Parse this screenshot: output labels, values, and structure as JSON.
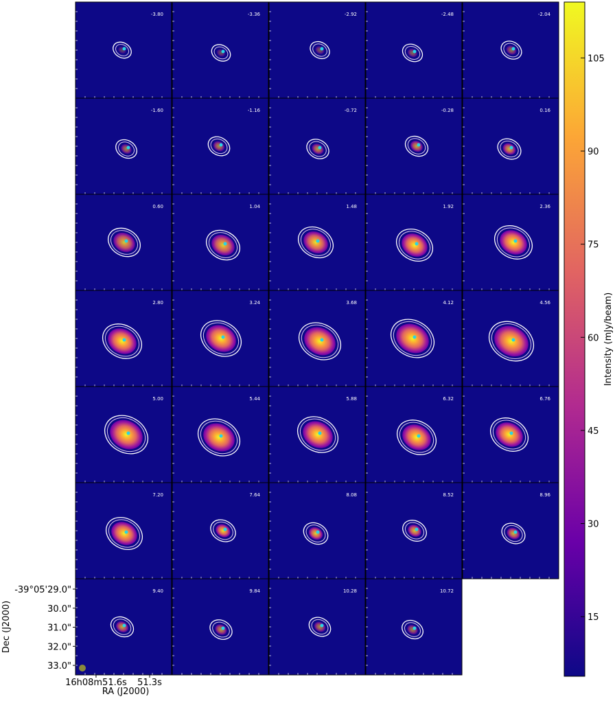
{
  "chart_data": {
    "type": "channel-map",
    "panels": [
      "-3.80",
      "-3.36",
      "-2.92",
      "-2.48",
      "-2.04",
      "-1.60",
      "-1.16",
      "-0.72",
      "-0.28",
      "0.16",
      "0.60",
      "1.04",
      "1.48",
      "1.92",
      "2.36",
      "2.80",
      "3.24",
      "3.68",
      "4.12",
      "4.56",
      "5.00",
      "5.44",
      "5.88",
      "6.32",
      "6.76",
      "7.20",
      "7.64",
      "8.08",
      "8.52",
      "8.96",
      "9.40",
      "9.84",
      "10.28",
      "10.72"
    ],
    "xlabel": "RA (J2000)",
    "ylabel": "Dec (J2000)",
    "xlim": [
      51.715,
      51.177
    ],
    "xticks": [
      {
        "value": 51.6,
        "label": "16h08m51.6s"
      },
      {
        "value": 51.3,
        "label": "51.3s"
      }
    ],
    "ylim": [
      28.46,
      33.5
    ],
    "yticks": [
      {
        "value": 29.0,
        "label": "-39°05'29.0\""
      },
      {
        "value": 30.0,
        "label": "30.0\""
      },
      {
        "value": 31.0,
        "label": "31.0\""
      },
      {
        "value": 32.0,
        "label": "32.0\""
      },
      {
        "value": 33.0,
        "label": "33.0\""
      }
    ],
    "colorbar_label": "Intensity (mJy/beam)",
    "clim": [
      5.4,
      114
    ],
    "cticks": [
      15,
      30,
      45,
      60,
      75,
      90,
      105
    ],
    "colormap": [
      "#0d0887",
      "#6a00a8",
      "#b12a90",
      "#e16462",
      "#fca636",
      "#f0f921"
    ]
  }
}
